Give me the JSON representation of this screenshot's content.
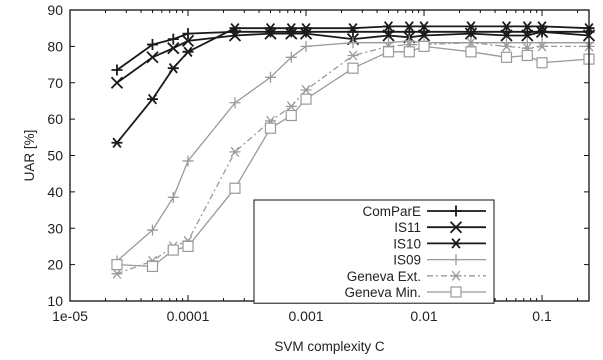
{
  "chart_data": {
    "type": "line",
    "xlabel": "SVM complexity C",
    "ylabel": "UAR [%]",
    "xscale": "log",
    "xlim": [
      1e-05,
      0.25
    ],
    "ylim": [
      10,
      90
    ],
    "yticks": [
      10,
      20,
      30,
      40,
      50,
      60,
      70,
      80,
      90
    ],
    "ytick_labels": [
      "10",
      "20",
      "30",
      "40",
      "50",
      "60",
      "70",
      "80",
      "90"
    ],
    "xticks": [
      1e-05,
      0.0001,
      0.001,
      0.01,
      0.1
    ],
    "xtick_labels": [
      "1e-05",
      "0.0001",
      "0.001",
      "0.01",
      "0.1"
    ],
    "grid": false,
    "legend_position": "center-right",
    "x": [
      2.5e-05,
      5e-05,
      7.5e-05,
      0.0001,
      0.00025,
      0.0005,
      0.00075,
      0.001,
      0.0025,
      0.005,
      0.0075,
      0.01,
      0.025,
      0.05,
      0.075,
      0.1,
      0.25
    ],
    "series": [
      {
        "name": "ComParE",
        "color": "#1a1a1a",
        "marker": "plus",
        "dash": "solid",
        "values": [
          73.5,
          80.5,
          82.0,
          83.5,
          84.0,
          84.0,
          84.0,
          84.0,
          84.0,
          84.0,
          84.0,
          84.0,
          84.0,
          84.0,
          84.0,
          84.0,
          84.0
        ]
      },
      {
        "name": "IS11",
        "color": "#1a1a1a",
        "marker": "x",
        "dash": "solid",
        "values": [
          70.0,
          77.0,
          79.5,
          81.5,
          83.0,
          83.5,
          83.5,
          83.5,
          82.0,
          83.0,
          82.5,
          83.0,
          83.5,
          83.0,
          83.0,
          84.0,
          83.0
        ]
      },
      {
        "name": "IS10",
        "color": "#1a1a1a",
        "marker": "asterisk",
        "dash": "solid",
        "values": [
          53.5,
          65.5,
          74.0,
          78.5,
          85.0,
          85.0,
          85.0,
          85.0,
          85.0,
          85.5,
          85.5,
          85.5,
          85.5,
          85.5,
          85.5,
          85.5,
          85.0
        ]
      },
      {
        "name": "IS09",
        "color": "#9a9a9a",
        "marker": "plus",
        "dash": "solid",
        "values": [
          21.0,
          29.5,
          38.5,
          48.5,
          64.5,
          71.5,
          77.0,
          80.0,
          81.0,
          81.0,
          81.5,
          81.0,
          81.0,
          81.0,
          81.0,
          81.0,
          81.0
        ]
      },
      {
        "name": "Geneva Ext.",
        "color": "#9a9a9a",
        "marker": "asterisk",
        "dash": "dashdot",
        "values": [
          17.5,
          21.0,
          25.0,
          26.5,
          51.0,
          59.5,
          63.5,
          68.0,
          77.5,
          80.0,
          80.5,
          80.5,
          81.0,
          80.0,
          79.5,
          80.0,
          80.0
        ]
      },
      {
        "name": "Geneva Min.",
        "color": "#9a9a9a",
        "marker": "square",
        "dash": "solid",
        "values": [
          20.0,
          19.5,
          24.0,
          25.0,
          41.0,
          57.5,
          61.0,
          65.5,
          74.0,
          78.5,
          78.5,
          80.0,
          78.5,
          77.0,
          77.5,
          75.5,
          76.5
        ]
      }
    ]
  }
}
